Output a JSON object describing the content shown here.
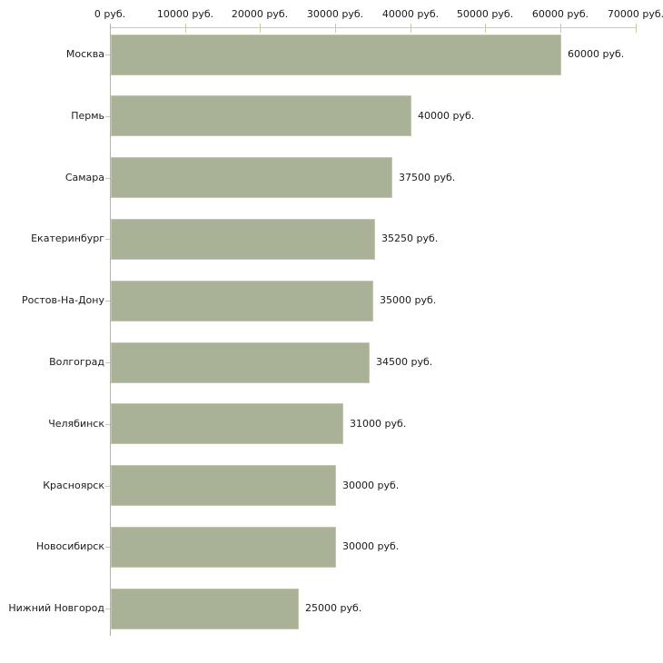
{
  "chart_data": {
    "type": "bar",
    "orientation": "horizontal",
    "title": "",
    "categories": [
      "Москва",
      "Пермь",
      "Самара",
      "Екатеринбург",
      "Ростов-На-Дону",
      "Волгоград",
      "Челябинск",
      "Красноярск",
      "Новосибирск",
      "Нижний Новгород"
    ],
    "values": [
      60000,
      40000,
      37500,
      35250,
      35000,
      34500,
      31000,
      30000,
      30000,
      25000
    ],
    "value_labels": [
      "60000 руб.",
      "40000 руб.",
      "37500 руб.",
      "35250 руб.",
      "35000 руб.",
      "34500 руб.",
      "31000 руб.",
      "30000 руб.",
      "30000 руб.",
      "25000 руб."
    ],
    "x_tick_values": [
      0,
      10000,
      20000,
      30000,
      40000,
      50000,
      60000,
      70000
    ],
    "x_tick_labels": [
      "0 руб.",
      "10000 руб.",
      "20000 руб.",
      "30000 руб.",
      "40000 руб.",
      "50000 руб.",
      "60000 руб.",
      "70000 руб."
    ],
    "xlim": [
      0,
      70000
    ],
    "unit": "руб.",
    "grid": false,
    "legend": null,
    "axis_position": "top",
    "colors": {
      "bar": "#a9b197",
      "bar_edge": "#c3c9af",
      "x_axis_line": "#c9c9c9",
      "x_tick": "#c9c9a0",
      "y_axis_line": "#b3b3b3",
      "category_tick": "#c6c6b2",
      "text": "#1a1a1a",
      "background": "#ffffff"
    }
  }
}
